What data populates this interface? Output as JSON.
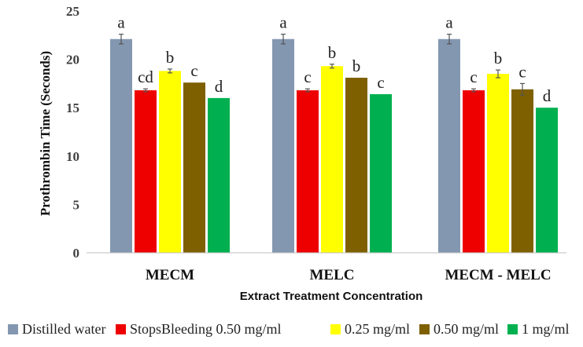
{
  "chart_data": {
    "type": "bar",
    "title": "",
    "xlabel": "Extract Treatment Concentration",
    "ylabel": "Prothrombin Time (Seconds)",
    "ylim": [
      0,
      25
    ],
    "yticks": [
      "0",
      "5",
      "10",
      "15",
      "20",
      "25"
    ],
    "categories": [
      "MECM",
      "MELC",
      "MECM - MELC"
    ],
    "series": [
      {
        "name": "Distilled water",
        "color": "#8497B0",
        "values": [
          22.1,
          22.1,
          22.1
        ],
        "errors": [
          0.5,
          0.5,
          0.5
        ],
        "letters": [
          "a",
          "a",
          "a"
        ]
      },
      {
        "name": "StopsBleeding 0.50 mg/ml",
        "color": "#EE0000",
        "values": [
          16.8,
          16.8,
          16.8
        ],
        "errors": [
          0.15,
          0.15,
          0.15
        ],
        "letters": [
          "cd",
          "c",
          "c"
        ]
      },
      {
        "name": "0.25 mg/ml",
        "color": "#FFFF00",
        "values": [
          18.8,
          19.3,
          18.5
        ],
        "errors": [
          0.2,
          0.2,
          0.4
        ],
        "letters": [
          "b",
          "b",
          "b"
        ]
      },
      {
        "name": "0.50 mg/ml",
        "color": "#7F6000",
        "values": [
          17.6,
          18.1,
          16.9
        ],
        "errors": [
          0,
          0,
          0.6
        ],
        "letters": [
          "c",
          "b",
          "c"
        ]
      },
      {
        "name": "1 mg/ml",
        "color": "#00B050",
        "values": [
          16.0,
          16.4,
          15.0
        ],
        "errors": [
          0,
          0,
          0
        ],
        "letters": [
          "d",
          "c",
          "d"
        ]
      }
    ],
    "legend": "bottom",
    "grid": false
  }
}
